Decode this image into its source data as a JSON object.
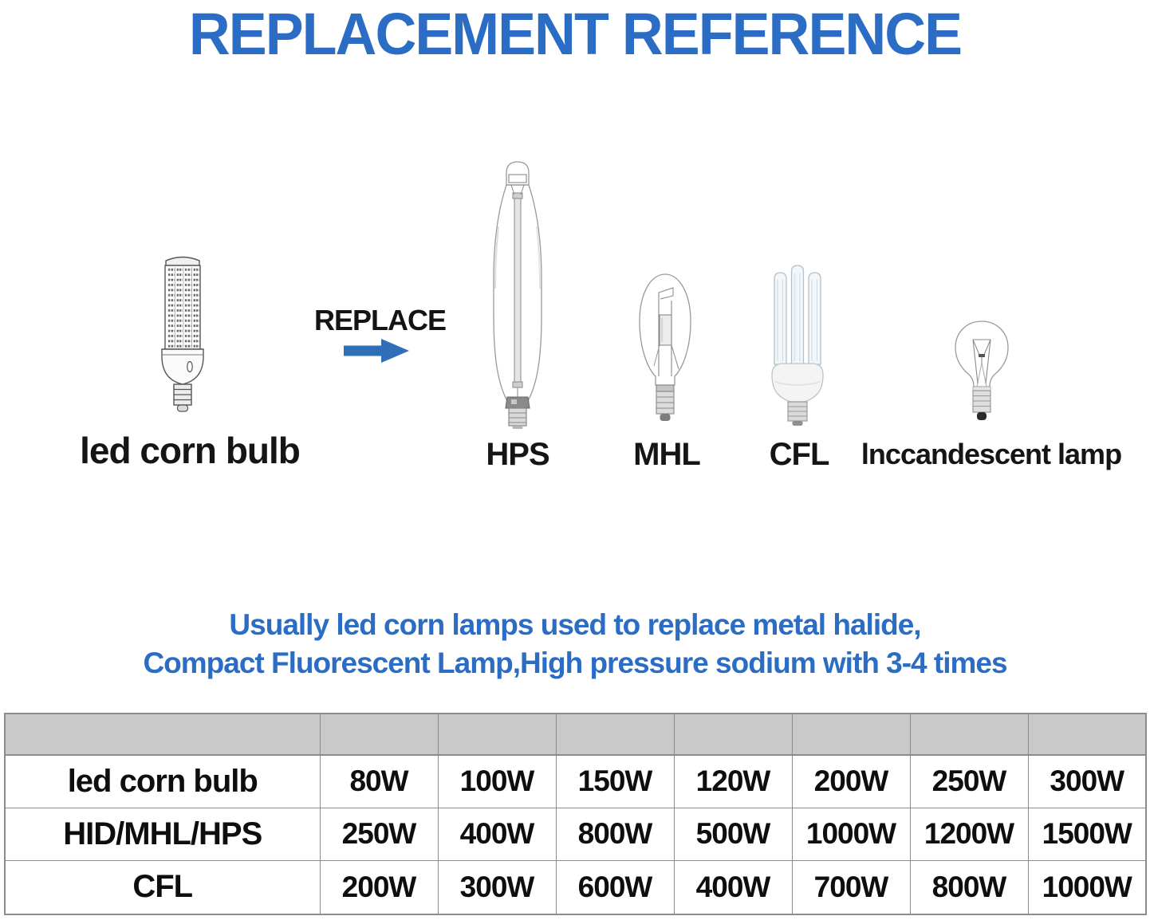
{
  "title": "REPLACEMENT REFERENCE",
  "replace_label": "REPLACE",
  "source_bulb": {
    "label": "led corn bulb"
  },
  "target_bulbs": [
    {
      "label": "HPS"
    },
    {
      "label": "MHL"
    },
    {
      "label": "CFL"
    },
    {
      "label": "lnccandescent lamp"
    }
  ],
  "description": {
    "line1": "Usually led corn lamps used to replace metal halide,",
    "line2": "Compact Fluorescent Lamp,High pressure sodium with 3-4 times"
  },
  "colors": {
    "accent_blue": "#2b6cc4",
    "arrow_blue": "#2e6fb8",
    "table_header_bg": "#c9c9c9",
    "table_border": "#8c8c8c"
  },
  "table": {
    "header_cells": [
      "",
      "",
      "",
      "",
      "",
      "",
      "",
      ""
    ],
    "rows": [
      {
        "label": "led corn bulb",
        "values": [
          "80W",
          "100W",
          "150W",
          "120W",
          "200W",
          "250W",
          "300W"
        ]
      },
      {
        "label": "HID/MHL/HPS",
        "values": [
          "250W",
          "400W",
          "800W",
          "500W",
          "1000W",
          "1200W",
          "1500W"
        ]
      },
      {
        "label": "CFL",
        "values": [
          "200W",
          "300W",
          "600W",
          "400W",
          "700W",
          "800W",
          "1000W"
        ]
      }
    ]
  }
}
